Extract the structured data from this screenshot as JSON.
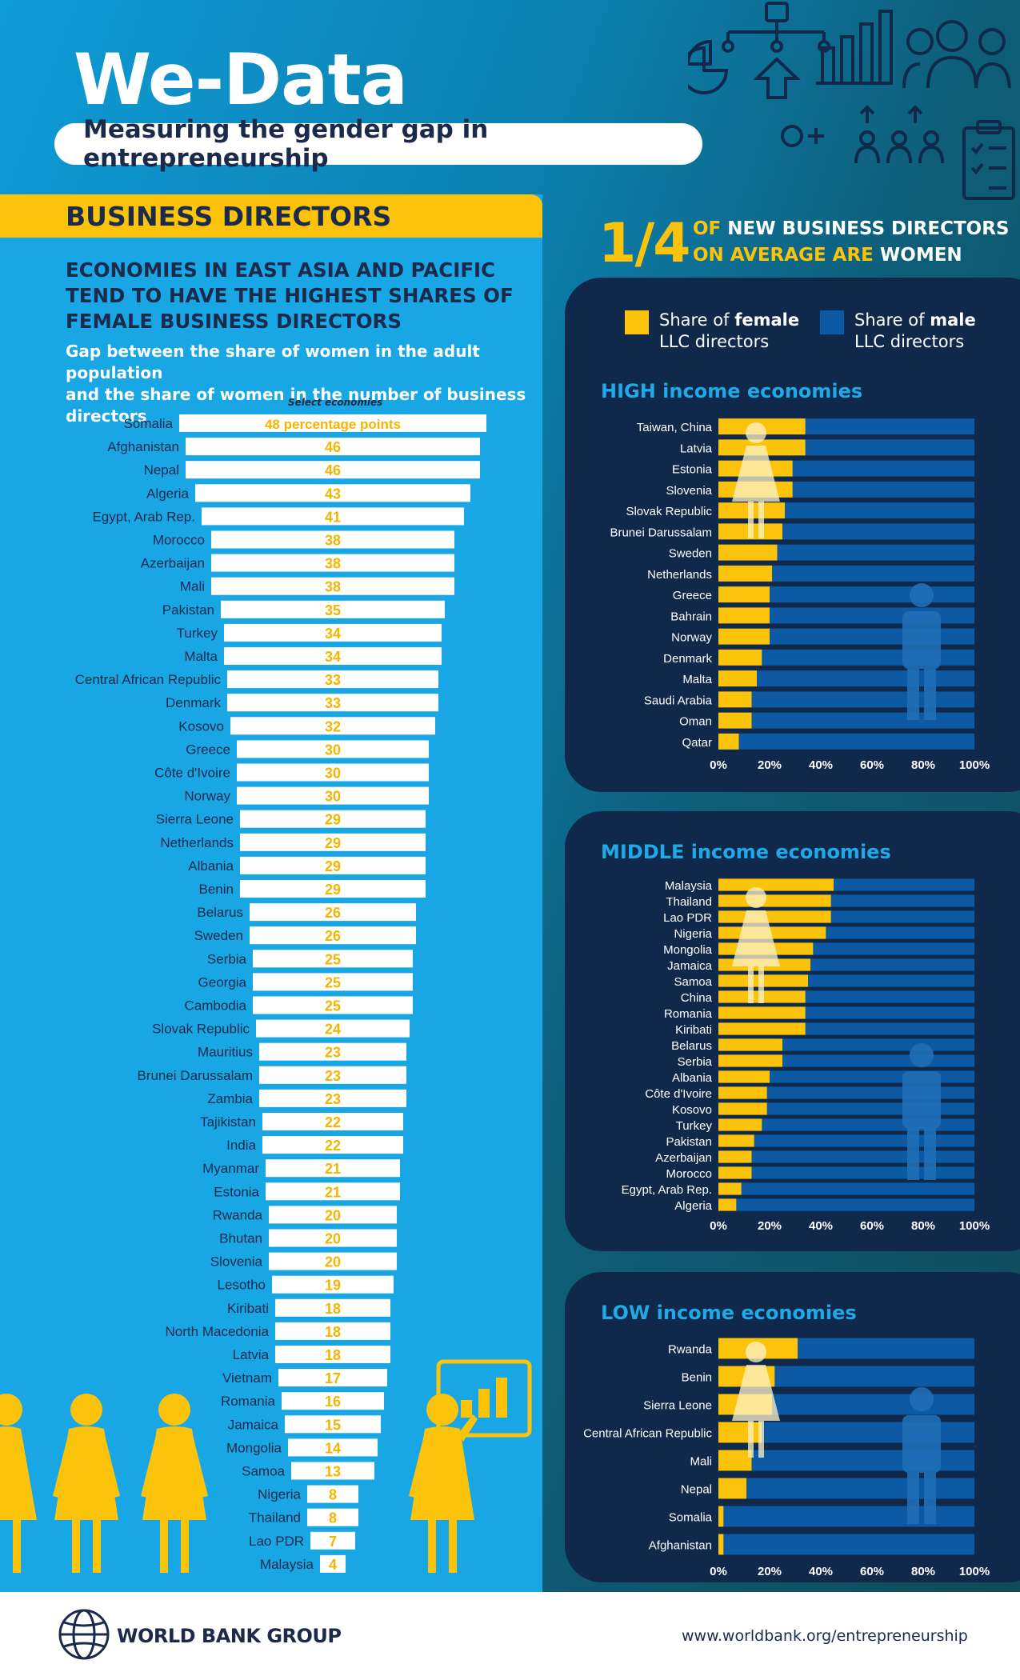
{
  "header": {
    "title": "We-Data",
    "subtitle": "Measuring the gender gap in entrepreneurship"
  },
  "section": {
    "title": "BUSINESS DIRECTORS",
    "headline": [
      "ECONOMIES IN EAST ASIA AND PACIFIC",
      "TEND TO HAVE THE HIGHEST SHARES OF",
      "FEMALE BUSINESS DIRECTORS"
    ],
    "description": [
      "Gap between the share of women in the adult population",
      "and the share of women in the number of business directors"
    ],
    "select_note": "Select economies"
  },
  "stat": {
    "number": "1/4",
    "line1_a": "OF ",
    "line1_b": "NEW BUSINESS DIRECTORS",
    "line2_a": "ON AVERAGE ARE ",
    "line2_b": "WOMEN"
  },
  "legend": {
    "female_a": "Share of ",
    "female_b": "female",
    "female_c": "LLC directors",
    "male_a": "Share of ",
    "male_b": "male",
    "male_c": "LLC directors"
  },
  "colors": {
    "female": "#fcc30b",
    "male": "#0b5aa3",
    "panel": "#10294a",
    "accent": "#1fa9e8",
    "navy": "#1b2a4a"
  },
  "chart_data": [
    {
      "type": "bar",
      "title": "Gap between the share of women in the adult population and the share of women in the number of business directors",
      "unit_note": "percentage points",
      "first_label": "48 percentage points",
      "categories": [
        "Somalia",
        "Afghanistan",
        "Nepal",
        "Algeria",
        "Egypt, Arab Rep.",
        "Morocco",
        "Azerbaijan",
        "Mali",
        "Pakistan",
        "Turkey",
        "Malta",
        "Central African Republic",
        "Denmark",
        "Kosovo",
        "Greece",
        "Côte d'Ivoire",
        "Norway",
        "Sierra Leone",
        "Netherlands",
        "Albania",
        "Benin",
        "Belarus",
        "Sweden",
        "Serbia",
        "Georgia",
        "Cambodia",
        "Slovak Republic",
        "Mauritius",
        "Brunei Darussalam",
        "Zambia",
        "Tajikistan",
        "India",
        "Myanmar",
        "Estonia",
        "Rwanda",
        "Bhutan",
        "Slovenia",
        "Lesotho",
        "Kiribati",
        "North Macedonia",
        "Latvia",
        "Vietnam",
        "Romania",
        "Jamaica",
        "Mongolia",
        "Samoa",
        "Nigeria",
        "Thailand",
        "Lao PDR",
        "Malaysia"
      ],
      "values": [
        48,
        46,
        46,
        43,
        41,
        38,
        38,
        38,
        35,
        34,
        34,
        33,
        33,
        32,
        30,
        30,
        30,
        29,
        29,
        29,
        29,
        26,
        26,
        25,
        25,
        25,
        24,
        23,
        23,
        23,
        22,
        22,
        21,
        21,
        20,
        20,
        20,
        19,
        18,
        18,
        18,
        17,
        16,
        15,
        14,
        13,
        8,
        8,
        7,
        4
      ]
    },
    {
      "type": "bar",
      "stacked": true,
      "title": "HIGH income economies",
      "title_a": "HIGH",
      "title_b": " income economies",
      "categories": [
        "Taiwan, China",
        "Latvia",
        "Estonia",
        "Slovenia",
        "Slovak Republic",
        "Brunei Darussalam",
        "Sweden",
        "Netherlands",
        "Greece",
        "Bahrain",
        "Norway",
        "Denmark",
        "Malta",
        "Saudi Arabia",
        "Oman",
        "Qatar"
      ],
      "series": [
        {
          "name": "Share of female LLC directors",
          "values": [
            34,
            34,
            29,
            29,
            26,
            25,
            23,
            21,
            20,
            20,
            20,
            17,
            15,
            13,
            13,
            8
          ]
        },
        {
          "name": "Share of male LLC directors",
          "values": [
            66,
            66,
            71,
            71,
            74,
            75,
            77,
            79,
            80,
            80,
            80,
            83,
            85,
            87,
            87,
            92
          ]
        }
      ],
      "xticks": [
        "0%",
        "20%",
        "40%",
        "60%",
        "80%",
        "100%"
      ],
      "xlim": [
        0,
        100
      ]
    },
    {
      "type": "bar",
      "stacked": true,
      "title": "MIDDLE income economies",
      "title_a": "MIDDLE",
      "title_b": " income economies",
      "categories": [
        "Malaysia",
        "Thailand",
        "Lao PDR",
        "Nigeria",
        "Mongolia",
        "Jamaica",
        "Samoa",
        "China",
        "Romania",
        "Kiribati",
        "Belarus",
        "Serbia",
        "Albania",
        "Côte d'Ivoire",
        "Kosovo",
        "Turkey",
        "Pakistan",
        "Azerbaijan",
        "Morocco",
        "Egypt, Arab Rep.",
        "Algeria"
      ],
      "series": [
        {
          "name": "Share of female LLC directors",
          "values": [
            45,
            44,
            44,
            42,
            37,
            36,
            35,
            34,
            34,
            34,
            25,
            25,
            20,
            19,
            19,
            17,
            14,
            13,
            13,
            9,
            7
          ]
        },
        {
          "name": "Share of male LLC directors",
          "values": [
            55,
            56,
            56,
            58,
            63,
            64,
            65,
            66,
            66,
            66,
            75,
            75,
            80,
            81,
            81,
            83,
            86,
            87,
            87,
            91,
            93
          ]
        }
      ],
      "xticks": [
        "0%",
        "20%",
        "40%",
        "60%",
        "80%",
        "100%"
      ],
      "xlim": [
        0,
        100
      ]
    },
    {
      "type": "bar",
      "stacked": true,
      "title": "LOW income economies",
      "title_a": "LOW",
      "title_b": " income economies",
      "categories": [
        "Rwanda",
        "Benin",
        "Sierra Leone",
        "Central African Republic",
        "Mali",
        "Nepal",
        "Somalia",
        "Afghanistan"
      ],
      "series": [
        {
          "name": "Share of female LLC directors",
          "values": [
            31,
            22,
            21,
            17,
            13,
            11,
            2,
            2
          ]
        },
        {
          "name": "Share of male LLC directors",
          "values": [
            69,
            78,
            79,
            83,
            87,
            89,
            98,
            98
          ]
        }
      ],
      "xticks": [
        "0%",
        "20%",
        "40%",
        "60%",
        "80%",
        "100%"
      ],
      "xlim": [
        0,
        100
      ]
    }
  ],
  "footer": {
    "logo_text": "WORLD BANK GROUP",
    "url": "www.worldbank.org/entrepreneurship"
  }
}
